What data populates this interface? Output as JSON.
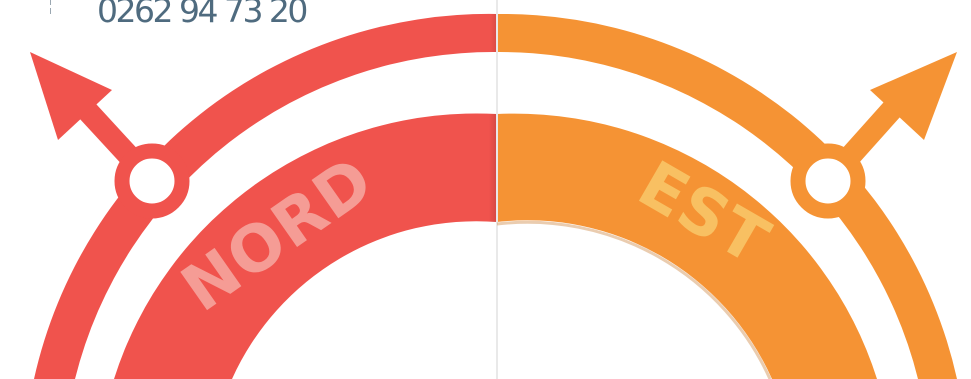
{
  "contact": {
    "phone": "0262 94 73 20"
  },
  "compass": {
    "sectors": [
      {
        "label": "NORD",
        "color": "#f0534d",
        "text_color": "#f59c95"
      },
      {
        "label": "EST",
        "color": "#f59334",
        "text_color": "#f8c062"
      }
    ],
    "background_color": "#ffffff"
  }
}
